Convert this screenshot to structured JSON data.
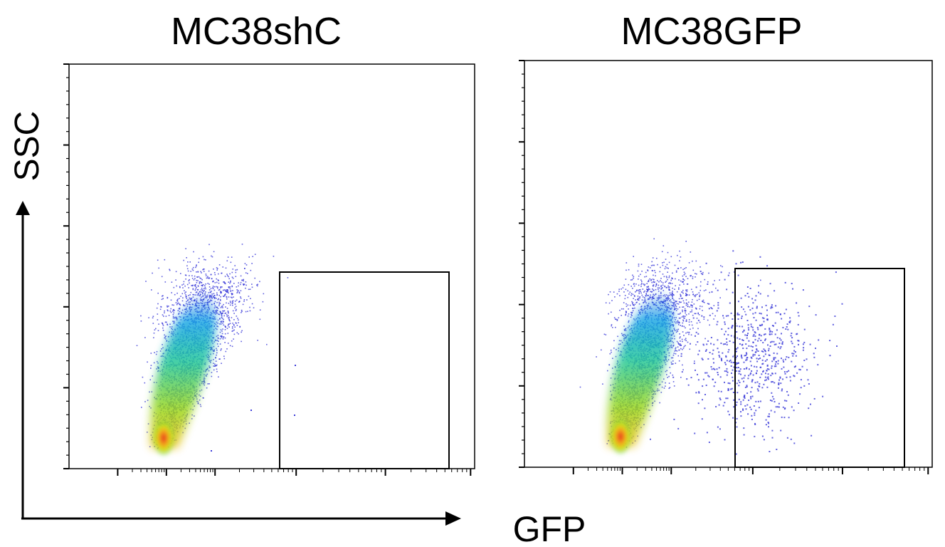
{
  "chart_data": [
    {
      "type": "scatter",
      "title": "MC38shC",
      "xlabel": "GFP",
      "ylabel": "SSC",
      "x_scale": "log",
      "y_scale": "linear",
      "colormap": "density (blue → cyan → green → yellow → red)",
      "gate": {
        "present": true,
        "events_inside": "very few"
      },
      "populations": [
        {
          "name": "GFP-negative",
          "density": "high",
          "peak_color": "#e0181c"
        },
        {
          "name": "GFP-positive",
          "density": "none"
        }
      ]
    },
    {
      "type": "scatter",
      "title": "MC38GFP",
      "xlabel": "GFP",
      "ylabel": "SSC",
      "x_scale": "log",
      "y_scale": "linear",
      "colormap": "density (blue → cyan → green → yellow → red)",
      "gate": {
        "present": true,
        "events_inside": "scattered population"
      },
      "populations": [
        {
          "name": "GFP-negative",
          "density": "high",
          "peak_color": "#e0181c"
        },
        {
          "name": "GFP-positive",
          "density": "sparse",
          "color": "#3a3ad8"
        }
      ]
    }
  ],
  "labels": {
    "left_title": "MC38shC",
    "right_title": "MC38GFP",
    "y_axis": "SSC",
    "x_axis": "GFP"
  },
  "colors": {
    "axis": "#000000",
    "frame": "#000000",
    "low_density": "#1f1fcf",
    "high_density": "#e0181c"
  }
}
